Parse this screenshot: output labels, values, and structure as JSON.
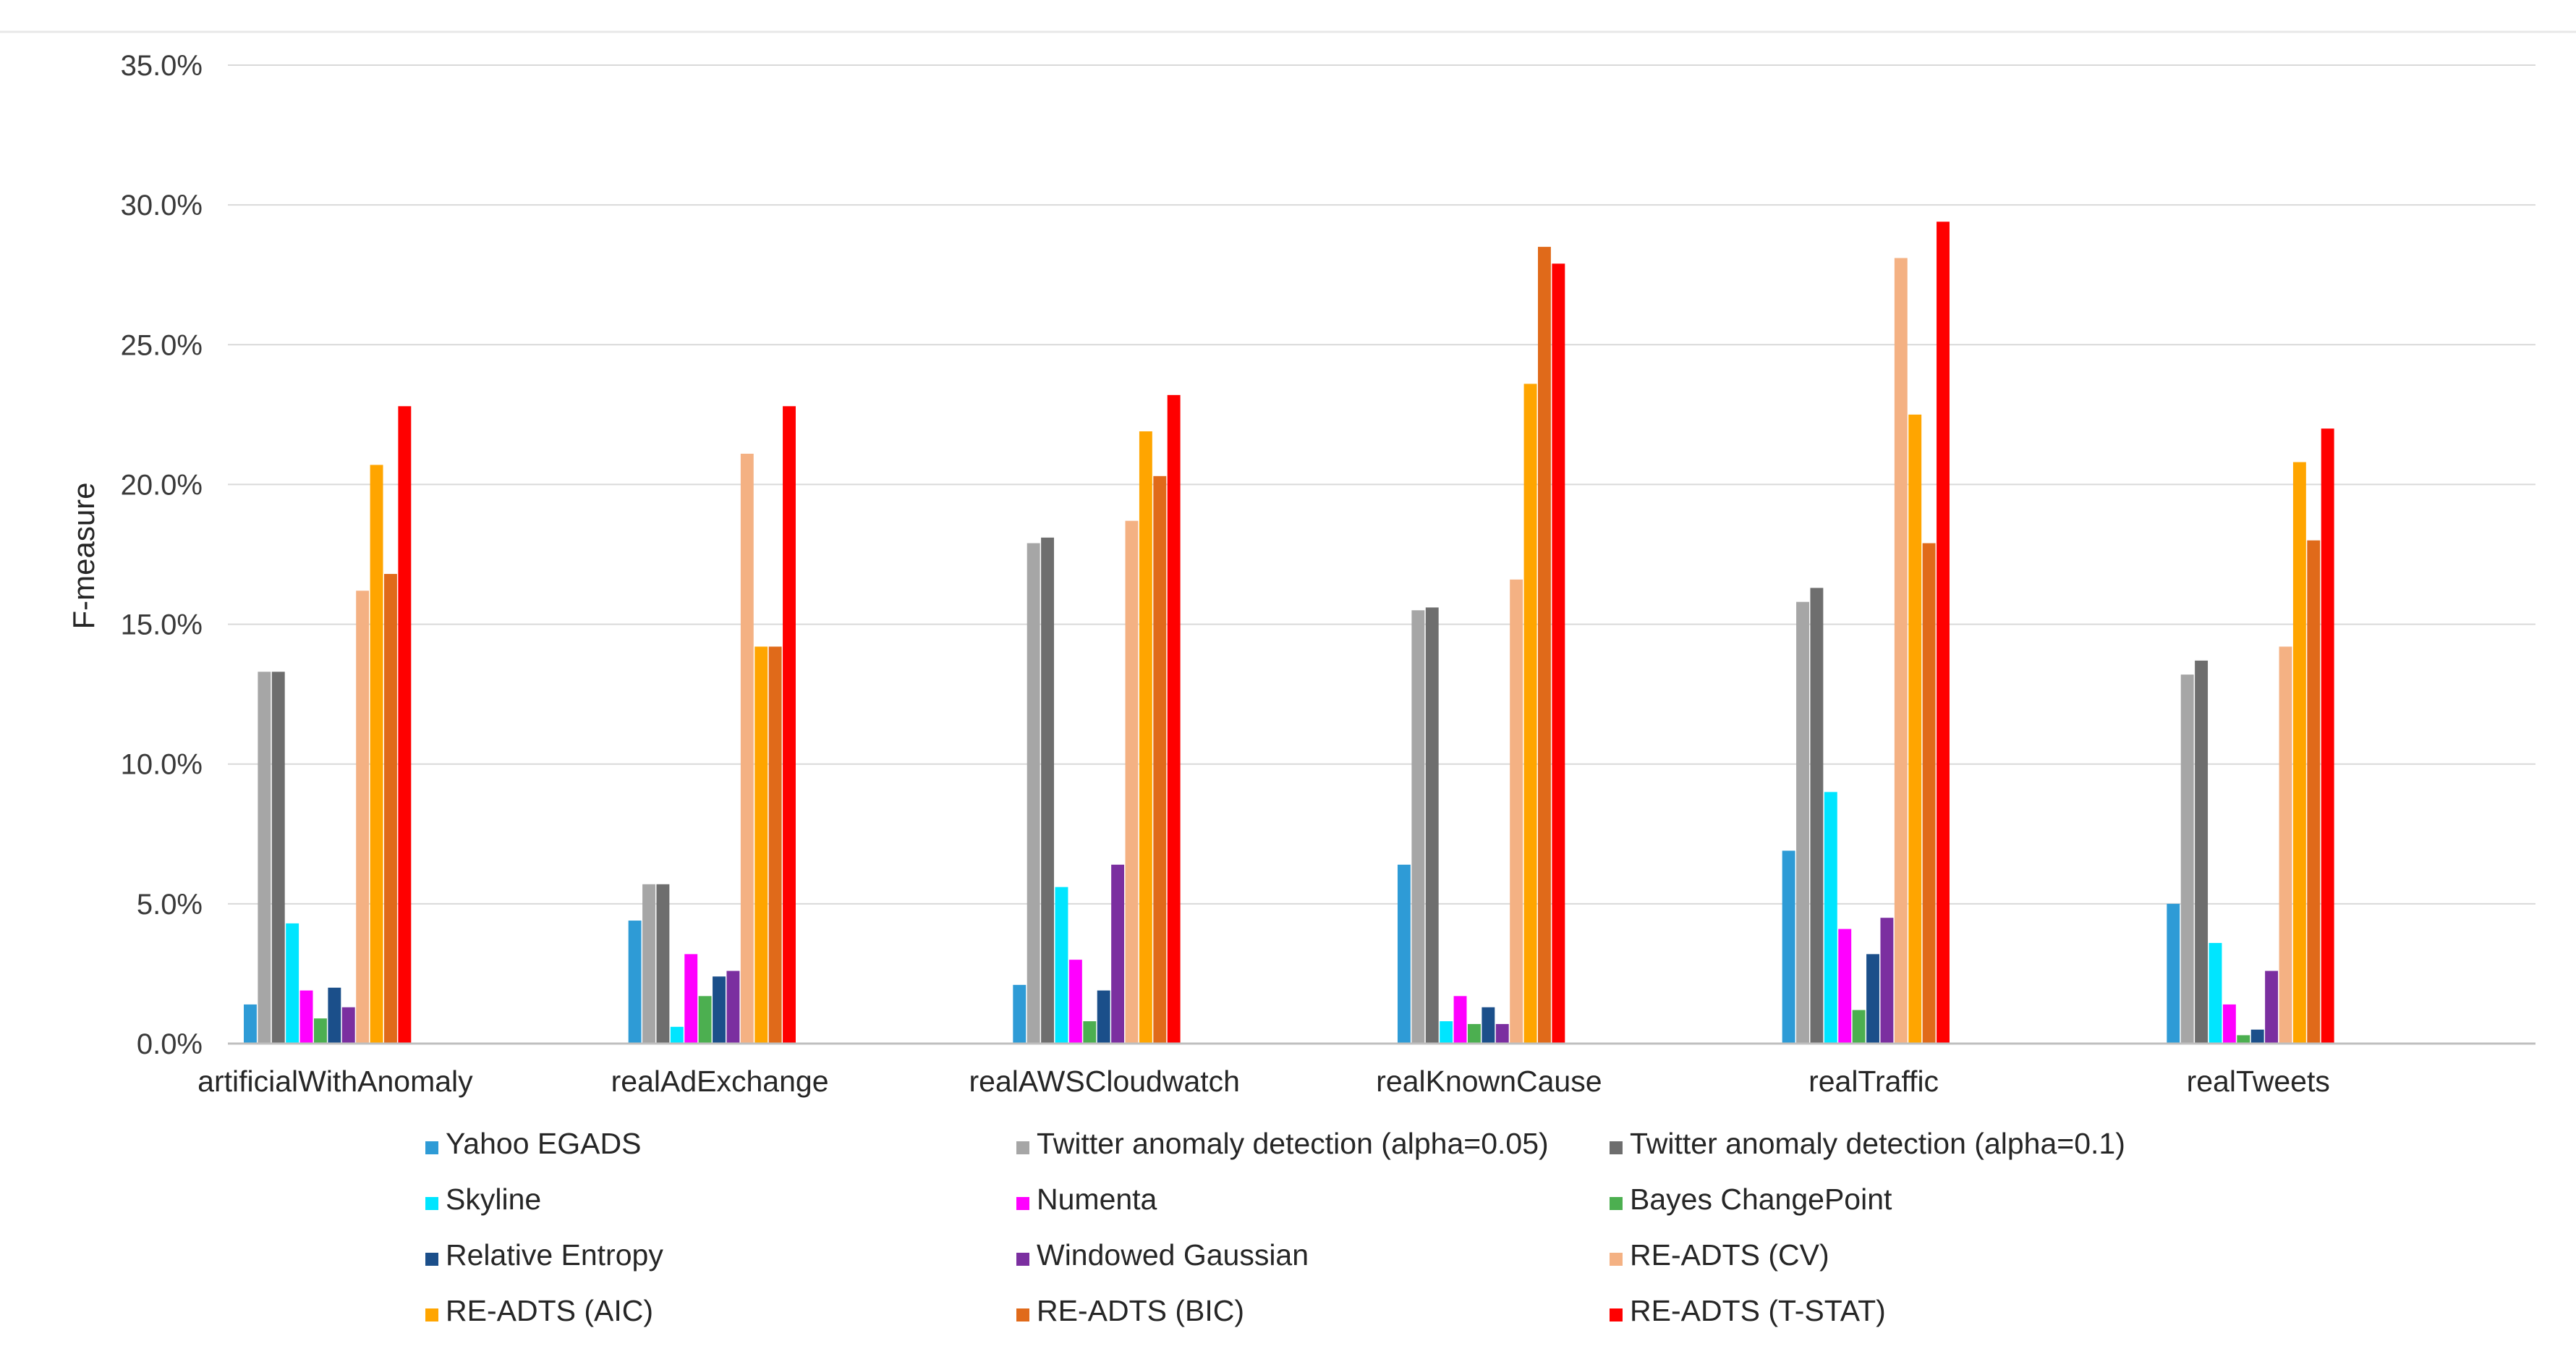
{
  "chart_data": {
    "type": "bar",
    "title": "",
    "xlabel": "",
    "ylabel": "F-measure",
    "ylim": [
      0,
      35
    ],
    "yticks": [
      "0.0%",
      "5.0%",
      "10.0%",
      "15.0%",
      "20.0%",
      "25.0%",
      "30.0%",
      "35.0%"
    ],
    "grid": true,
    "legend_position": "bottom",
    "categories": [
      "artificialWithAnomaly",
      "realAdExchange",
      "realAWSCloudwatch",
      "realKnownCause",
      "realTraffic",
      "realTweets"
    ],
    "series": [
      {
        "name": "Yahoo EGADS",
        "color": "#2e9bd6",
        "values": [
          1.4,
          4.4,
          2.1,
          6.4,
          6.9,
          5.0
        ]
      },
      {
        "name": "Twitter anomaly detection (alpha=0.05)",
        "color": "#a6a6a6",
        "values": [
          13.3,
          5.7,
          17.9,
          15.5,
          15.8,
          13.2
        ]
      },
      {
        "name": "Twitter anomaly detection (alpha=0.1)",
        "color": "#6e6e6e",
        "values": [
          13.3,
          5.7,
          18.1,
          15.6,
          16.3,
          13.7
        ]
      },
      {
        "name": "Skyline",
        "color": "#00e5ff",
        "values": [
          4.3,
          0.6,
          5.6,
          0.8,
          9.0,
          3.6
        ]
      },
      {
        "name": "Numenta",
        "color": "#ff00ff",
        "values": [
          1.9,
          3.2,
          3.0,
          1.7,
          4.1,
          1.4
        ]
      },
      {
        "name": "Bayes ChangePoint",
        "color": "#4caf50",
        "values": [
          0.9,
          1.7,
          0.8,
          0.7,
          1.2,
          0.3
        ]
      },
      {
        "name": "Relative Entropy",
        "color": "#1b4f8a",
        "values": [
          2.0,
          2.4,
          1.9,
          1.3,
          3.2,
          0.5
        ]
      },
      {
        "name": "Windowed Gaussian",
        "color": "#7b2fa0",
        "values": [
          1.3,
          2.6,
          6.4,
          0.7,
          4.5,
          2.6
        ]
      },
      {
        "name": "RE-ADTS (CV)",
        "color": "#f4b183",
        "values": [
          16.2,
          21.1,
          18.7,
          16.6,
          28.1,
          14.2
        ]
      },
      {
        "name": "RE-ADTS (AIC)",
        "color": "#ffa500",
        "values": [
          20.7,
          14.2,
          21.9,
          23.6,
          22.5,
          20.8
        ]
      },
      {
        "name": "RE-ADTS (BIC)",
        "color": "#e06a1a",
        "values": [
          16.8,
          14.2,
          20.3,
          28.5,
          17.9,
          18.0
        ]
      },
      {
        "name": "RE-ADTS (T-STAT)",
        "color": "#ff0000",
        "values": [
          22.8,
          22.8,
          23.2,
          27.9,
          29.4,
          22.0
        ]
      }
    ]
  }
}
